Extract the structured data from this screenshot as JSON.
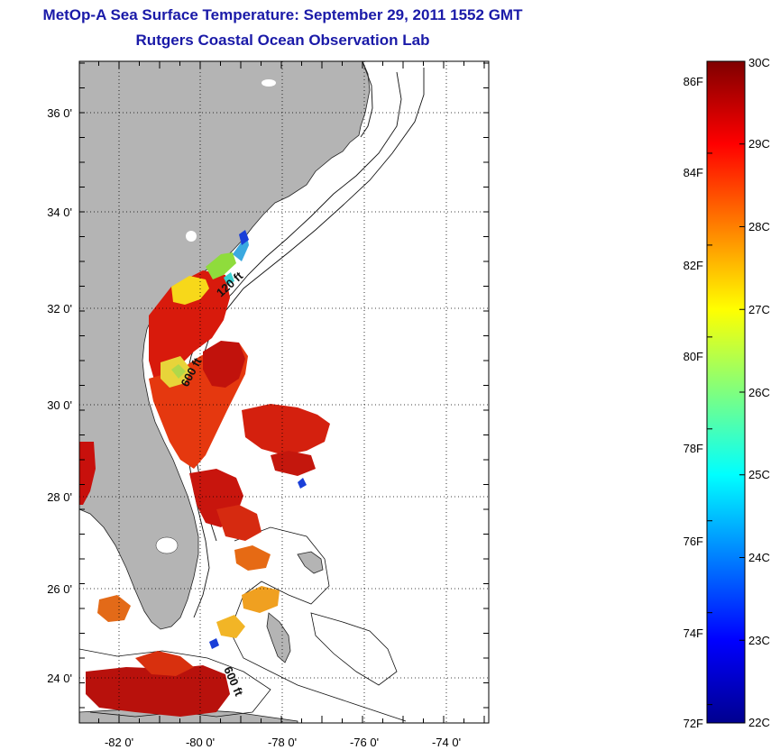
{
  "header": {
    "title": "MetOp-A Sea Surface Temperature:  September 29, 2011 1552 GMT",
    "subtitle": "Rutgers Coastal Ocean Observation Lab"
  },
  "map": {
    "lon_ticks": [
      "-82 0'",
      "-80 0'",
      "-78 0'",
      "-76 0'",
      "-74 0'"
    ],
    "lat_ticks": [
      "36 0'",
      "34 0'",
      "32 0'",
      "30 0'",
      "28 0'",
      "26 0'",
      "24 0'"
    ],
    "isobath_labels": [
      "120 ft",
      "600 ft",
      "600 ft"
    ],
    "land_color": "#b4b4b4",
    "grid": true
  },
  "colorbar": {
    "fahrenheit_labels": [
      "86F",
      "84F",
      "82F",
      "80F",
      "78F",
      "76F",
      "74F",
      "72F"
    ],
    "celsius_labels": [
      "30C",
      "29C",
      "28C",
      "27C",
      "26C",
      "25C",
      "24C",
      "23C",
      "22C"
    ],
    "min_c": 22,
    "max_c": 30
  }
}
